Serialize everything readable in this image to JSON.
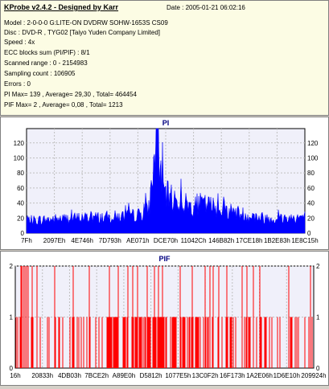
{
  "header": {
    "app_title": "KProbe v2.4.2 - Designed by Karr",
    "date_label": "Date : 2005-01-21 06:02:16"
  },
  "info_lines": [
    "Model : 2-0-0-0 G:LITE-ON DVDRW SOHW-1653S CS09",
    "Disc : DVD-R , TYG02 [Taiyo Yuden Company Limited]",
    "Speed : 4x",
    "ECC blocks sum (PI/PIF) : 8/1",
    "Scanned range : 0 - 2154983",
    "Sampling count : 106905",
    "Errors : 0",
    "PI Max= 139 , Average= 29,30 , Total= 464454",
    "PIF Max= 2 , Average= 0,08 , Total= 1213"
  ],
  "chart_data": [
    {
      "type": "area",
      "title": "PI",
      "color": "#0000ff",
      "ylim": [
        0,
        139
      ],
      "y_ticks": [
        0,
        20,
        40,
        60,
        80,
        100,
        120
      ],
      "x_tick_labels": [
        "7Fh",
        "2097Eh",
        "4E746h",
        "7D793h",
        "AE071h",
        "DCE70h",
        "11042Ch",
        "146B82h",
        "17CE18h",
        "1B2E83h",
        "1E8C15h"
      ],
      "grid": true,
      "max": 139,
      "average": 29.3,
      "profile": [
        [
          0,
          18
        ],
        [
          0.1,
          20
        ],
        [
          0.2,
          22
        ],
        [
          0.3,
          23
        ],
        [
          0.35,
          24
        ],
        [
          0.4,
          26
        ],
        [
          0.42,
          30
        ],
        [
          0.44,
          35
        ],
        [
          0.455,
          90
        ],
        [
          0.47,
          135
        ],
        [
          0.48,
          80
        ],
        [
          0.5,
          55
        ],
        [
          0.55,
          45
        ],
        [
          0.6,
          38
        ],
        [
          0.62,
          42
        ],
        [
          0.65,
          40
        ],
        [
          0.7,
          36
        ],
        [
          0.75,
          30
        ],
        [
          0.8,
          25
        ],
        [
          0.85,
          22
        ],
        [
          0.9,
          21
        ],
        [
          0.95,
          22
        ],
        [
          1,
          24
        ]
      ]
    },
    {
      "type": "bar",
      "title": "PIF",
      "color": "#ff0000",
      "ylim": [
        0,
        2
      ],
      "y_ticks": [
        0,
        1,
        2
      ],
      "x_tick_labels": [
        "16h",
        "20833h",
        "4DB03h",
        "7BCE2h",
        "A89E0h",
        "D5812h",
        "1077E5h",
        "13C0F2h",
        "16F173h",
        "1A2E06h",
        "1D6E10h",
        "209924h"
      ],
      "grid": true,
      "max": 2,
      "average": 0.08
    }
  ]
}
